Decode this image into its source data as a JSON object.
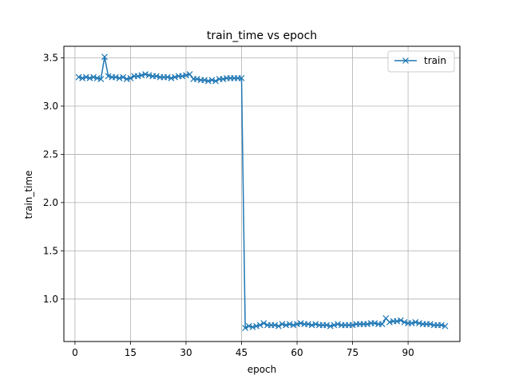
{
  "chart_data": {
    "type": "line",
    "title": "train_time vs epoch",
    "xlabel": "epoch",
    "ylabel": "train_time",
    "xlim": [
      -3,
      104
    ],
    "ylim": [
      0.56,
      3.62
    ],
    "xticks": [
      0,
      15,
      30,
      45,
      60,
      75,
      90
    ],
    "yticks": [
      1.0,
      1.5,
      2.0,
      2.5,
      3.0,
      3.5
    ],
    "ytick_labels": [
      "1.0",
      "1.5",
      "2.0",
      "2.5",
      "3.0",
      "3.5"
    ],
    "grid": true,
    "legend_position": "top-right",
    "series": [
      {
        "name": "train",
        "color": "#1f77b4",
        "marker": "x",
        "x": [
          1,
          2,
          3,
          4,
          5,
          6,
          7,
          8,
          9,
          10,
          11,
          12,
          13,
          14,
          15,
          16,
          17,
          18,
          19,
          20,
          21,
          22,
          23,
          24,
          25,
          26,
          27,
          28,
          29,
          30,
          31,
          32,
          33,
          34,
          35,
          36,
          37,
          38,
          39,
          40,
          41,
          42,
          43,
          44,
          45,
          46,
          47,
          48,
          49,
          50,
          51,
          52,
          53,
          54,
          55,
          56,
          57,
          58,
          59,
          60,
          61,
          62,
          63,
          64,
          65,
          66,
          67,
          68,
          69,
          70,
          71,
          72,
          73,
          74,
          75,
          76,
          77,
          78,
          79,
          80,
          81,
          82,
          83,
          84,
          85,
          86,
          87,
          88,
          89,
          90,
          91,
          92,
          93,
          94,
          95,
          96,
          97,
          98,
          99,
          100
        ],
        "values": [
          3.3,
          3.29,
          3.3,
          3.29,
          3.3,
          3.29,
          3.28,
          3.51,
          3.31,
          3.3,
          3.3,
          3.29,
          3.3,
          3.28,
          3.29,
          3.31,
          3.31,
          3.32,
          3.33,
          3.32,
          3.31,
          3.31,
          3.3,
          3.3,
          3.3,
          3.29,
          3.3,
          3.31,
          3.31,
          3.32,
          3.33,
          3.28,
          3.28,
          3.27,
          3.27,
          3.26,
          3.27,
          3.26,
          3.28,
          3.28,
          3.29,
          3.29,
          3.29,
          3.29,
          3.29,
          0.7,
          0.72,
          0.71,
          0.72,
          0.73,
          0.75,
          0.73,
          0.73,
          0.73,
          0.72,
          0.74,
          0.73,
          0.74,
          0.73,
          0.74,
          0.75,
          0.74,
          0.74,
          0.73,
          0.74,
          0.73,
          0.73,
          0.73,
          0.72,
          0.73,
          0.74,
          0.73,
          0.73,
          0.73,
          0.73,
          0.74,
          0.74,
          0.74,
          0.74,
          0.75,
          0.75,
          0.74,
          0.74,
          0.8,
          0.76,
          0.77,
          0.77,
          0.78,
          0.76,
          0.75,
          0.75,
          0.76,
          0.75,
          0.74,
          0.74,
          0.74,
          0.73,
          0.73,
          0.73,
          0.72
        ]
      }
    ]
  }
}
